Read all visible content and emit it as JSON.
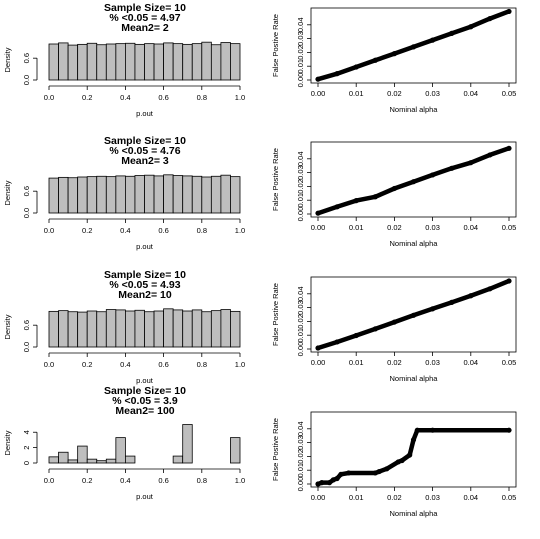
{
  "chart_data": [
    {
      "type": "bar",
      "title_lines": [
        "Sample Size= 10",
        "% <0.05 = 4.97",
        "Mean2= 2"
      ],
      "xlabel": "p.out",
      "ylabel": "Density",
      "xlim": [
        0,
        1
      ],
      "ylim": [
        0,
        1.1
      ],
      "xticks": [
        "0.0",
        "0.2",
        "0.4",
        "0.6",
        "0.8",
        "1.0"
      ],
      "yticks": [
        "0.0",
        "0.6"
      ],
      "bin_width": 0.05,
      "values": [
        0.99,
        1.02,
        0.96,
        0.98,
        1.01,
        0.97,
        0.99,
        1.0,
        1.01,
        0.98,
        1.0,
        0.99,
        1.02,
        1.0,
        0.98,
        1.0,
        1.04,
        0.97,
        1.03,
        1.0
      ]
    },
    {
      "type": "line",
      "xlabel": "Nominal alpha",
      "ylabel": "False Postive Rate",
      "xlim": [
        0,
        0.05
      ],
      "ylim": [
        0,
        0.05
      ],
      "xticks": [
        "0.00",
        "0.01",
        "0.02",
        "0.03",
        "0.04",
        "0.05"
      ],
      "yticks": [
        "0.00",
        "0.01",
        "0.02",
        "0.03",
        "0.04"
      ],
      "x": [
        0.0,
        0.005,
        0.01,
        0.015,
        0.02,
        0.025,
        0.03,
        0.035,
        0.04,
        0.045,
        0.05
      ],
      "y": [
        0.0006,
        0.0046,
        0.0094,
        0.0143,
        0.0191,
        0.024,
        0.0289,
        0.0338,
        0.0386,
        0.0445,
        0.0497
      ]
    },
    {
      "type": "bar",
      "title_lines": [
        "Sample Size= 10",
        "% <0.05 = 4.76",
        "Mean2= 3"
      ],
      "xlabel": "p.out",
      "ylabel": "Density",
      "xlim": [
        0,
        1
      ],
      "ylim": [
        0,
        1.1
      ],
      "xticks": [
        "0.0",
        "0.2",
        "0.4",
        "0.6",
        "0.8",
        "1.0"
      ],
      "yticks": [
        "0.0",
        "0.6"
      ],
      "bin_width": 0.05,
      "values": [
        0.96,
        0.98,
        0.97,
        0.99,
        1.0,
        1.01,
        1.0,
        1.02,
        1.01,
        1.03,
        1.04,
        1.02,
        1.05,
        1.03,
        1.02,
        1.01,
        0.99,
        1.01,
        1.04,
        1.0
      ]
    },
    {
      "type": "line",
      "xlabel": "Nominal alpha",
      "ylabel": "False Postive Rate",
      "xlim": [
        0,
        0.05
      ],
      "ylim": [
        0,
        0.05
      ],
      "xticks": [
        "0.00",
        "0.01",
        "0.02",
        "0.03",
        "0.04",
        "0.05"
      ],
      "yticks": [
        "0.00",
        "0.01",
        "0.02",
        "0.03",
        "0.04"
      ],
      "x": [
        0.0,
        0.005,
        0.01,
        0.015,
        0.02,
        0.025,
        0.03,
        0.035,
        0.04,
        0.045,
        0.05
      ],
      "y": [
        0.0006,
        0.0052,
        0.0097,
        0.0125,
        0.0185,
        0.0234,
        0.0283,
        0.0331,
        0.0372,
        0.0428,
        0.0476
      ]
    },
    {
      "type": "bar",
      "title_lines": [
        "Sample Size= 10",
        "% <0.05 = 4.93",
        "Mean2= 10"
      ],
      "xlabel": "p.out",
      "ylabel": "Density",
      "xlim": [
        0,
        1
      ],
      "ylim": [
        0,
        1.1
      ],
      "xticks": [
        "0.0",
        "0.2",
        "0.4",
        "0.6",
        "0.8",
        "1.0"
      ],
      "yticks": [
        "0.0",
        "0.6"
      ],
      "bin_width": 0.05,
      "values": [
        0.98,
        1.0,
        0.97,
        0.96,
        0.99,
        0.97,
        1.03,
        1.02,
        0.99,
        1.01,
        0.97,
        0.99,
        1.05,
        1.02,
        0.99,
        1.02,
        0.97,
        1.0,
        1.03,
        0.98
      ]
    },
    {
      "type": "line",
      "xlabel": "Nominal alpha",
      "ylabel": "False Postive Rate",
      "xlim": [
        0,
        0.05
      ],
      "ylim": [
        0,
        0.05
      ],
      "xticks": [
        "0.00",
        "0.01",
        "0.02",
        "0.03",
        "0.04",
        "0.05"
      ],
      "yticks": [
        "0.00",
        "0.01",
        "0.02",
        "0.03",
        "0.04"
      ],
      "x": [
        0.0,
        0.005,
        0.01,
        0.015,
        0.02,
        0.025,
        0.03,
        0.035,
        0.04,
        0.045,
        0.05
      ],
      "y": [
        0.0007,
        0.0051,
        0.0098,
        0.0146,
        0.0195,
        0.0244,
        0.0291,
        0.0338,
        0.0386,
        0.0436,
        0.0493
      ]
    },
    {
      "type": "bar",
      "title_lines": [
        "Sample Size= 10",
        "% <0.05 = 3.9",
        "Mean2= 100"
      ],
      "xlabel": "p.out",
      "ylabel": "Density",
      "xlim": [
        0,
        1
      ],
      "ylim": [
        0,
        5.2
      ],
      "xticks": [
        "0.0",
        "0.2",
        "0.4",
        "0.6",
        "0.8",
        "1.0"
      ],
      "yticks": [
        "0",
        "2",
        "4"
      ],
      "bin_width": 0.05,
      "values": [
        0.8,
        1.4,
        0.4,
        2.2,
        0.5,
        0.3,
        0.5,
        3.3,
        0.9,
        0.0,
        0.0,
        0.0,
        0.0,
        0.9,
        5.0,
        0.0,
        0.0,
        0.0,
        0.0,
        3.3
      ]
    },
    {
      "type": "line",
      "xlabel": "Nominal alpha",
      "ylabel": "False Postive Rate",
      "xlim": [
        0,
        0.05
      ],
      "ylim": [
        0,
        0.05
      ],
      "xticks": [
        "0.00",
        "0.01",
        "0.02",
        "0.03",
        "0.04",
        "0.05"
      ],
      "yticks": [
        "0.00",
        "0.01",
        "0.02",
        "0.03",
        "0.04"
      ],
      "x": [
        0.0,
        0.001,
        0.003,
        0.004,
        0.005,
        0.006,
        0.008,
        0.015,
        0.016,
        0.018,
        0.021,
        0.022,
        0.024,
        0.025,
        0.026,
        0.03,
        0.05
      ],
      "y": [
        0.0,
        0.001,
        0.001,
        0.003,
        0.004,
        0.007,
        0.008,
        0.008,
        0.009,
        0.011,
        0.016,
        0.017,
        0.021,
        0.032,
        0.039,
        0.039,
        0.039
      ]
    }
  ]
}
